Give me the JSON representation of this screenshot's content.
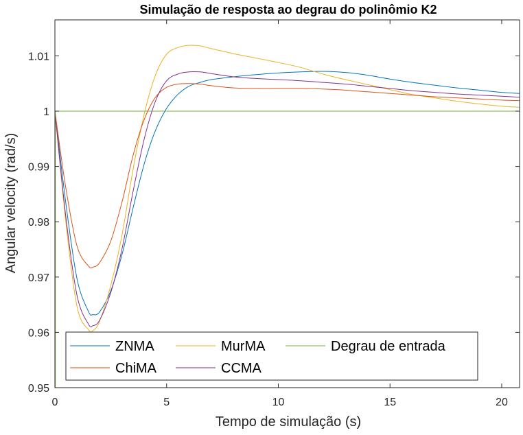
{
  "chart_data": {
    "type": "line",
    "title": "Simulação de resposta ao degrau do polinômio K2",
    "xlabel": "Tempo de simulação (s)",
    "ylabel": "Angular velocity (rad/s)",
    "xlim": [
      0,
      20.8
    ],
    "ylim": [
      0.95,
      1.0165
    ],
    "x_ticks": [
      0,
      5,
      10,
      15,
      20
    ],
    "x_tick_labels": [
      "0",
      "5",
      "10",
      "15",
      "20"
    ],
    "y_ticks": [
      0.95,
      0.96,
      0.97,
      0.98,
      0.99,
      1.0,
      1.01
    ],
    "y_tick_labels": [
      "0.95",
      "0.96",
      "0.97",
      "0.98",
      "0.99",
      "1",
      "1.01"
    ],
    "grid": false,
    "legend_position": "bottom-left",
    "series": [
      {
        "name": "ZNMA",
        "color": "#0072BD",
        "x": [
          0,
          0.5,
          1.0,
          1.5,
          1.7,
          2.0,
          2.5,
          3.0,
          3.5,
          4.0,
          4.5,
          5.0,
          5.5,
          6.0,
          6.5,
          7,
          8,
          9,
          10,
          11,
          12,
          13,
          14,
          15,
          16,
          17,
          18,
          19,
          20,
          20.8
        ],
        "y": [
          1.0,
          0.983,
          0.9695,
          0.9638,
          0.9632,
          0.9637,
          0.9675,
          0.974,
          0.9825,
          0.9905,
          0.9965,
          1.0005,
          1.003,
          1.0045,
          1.0052,
          1.0057,
          1.0062,
          1.0066,
          1.0069,
          1.0071,
          1.0072,
          1.007,
          1.0065,
          1.0058,
          1.0052,
          1.0047,
          1.0042,
          1.0038,
          1.0034,
          1.0032
        ]
      },
      {
        "name": "MurMA",
        "color": "#EDB120",
        "x": [
          0,
          0.5,
          1.0,
          1.5,
          1.7,
          2.0,
          2.5,
          3.0,
          3.5,
          4.0,
          4.5,
          5.0,
          5.5,
          6.0,
          6.5,
          7,
          8,
          9,
          10,
          11,
          12,
          13,
          14,
          15,
          16,
          17,
          18,
          19,
          20,
          20.8
        ],
        "y": [
          1.0,
          0.9795,
          0.9645,
          0.9605,
          0.9603,
          0.962,
          0.9685,
          0.9775,
          0.9895,
          0.9995,
          1.0065,
          1.0103,
          1.0115,
          1.0119,
          1.0118,
          1.0113,
          1.0104,
          1.0096,
          1.0088,
          1.0079,
          1.0067,
          1.0057,
          1.0048,
          1.0039,
          1.003,
          1.0024,
          1.0018,
          1.0013,
          1.0009,
          1.0007
        ]
      },
      {
        "name": "Degrau de entrada",
        "color": "#77AC30",
        "x": [
          0,
          20.8
        ],
        "y": [
          1.0,
          1.0
        ]
      },
      {
        "name": "ChiMA",
        "color": "#D95319",
        "x": [
          0,
          0.5,
          1.0,
          1.5,
          1.7,
          2.0,
          2.5,
          3.0,
          3.5,
          4.0,
          4.5,
          5.0,
          5.5,
          6.0,
          6.5,
          7,
          8,
          9,
          10,
          11,
          12,
          13,
          14,
          15,
          16,
          17,
          18,
          19,
          20,
          20.8
        ],
        "y": [
          1.0,
          0.9858,
          0.9755,
          0.972,
          0.9718,
          0.9726,
          0.9765,
          0.9835,
          0.992,
          0.9985,
          1.0025,
          1.0043,
          1.0049,
          1.005,
          1.0049,
          1.0046,
          1.0042,
          1.0041,
          1.0041,
          1.0041,
          1.004,
          1.0038,
          1.0035,
          1.0032,
          1.0029,
          1.0026,
          1.0024,
          1.0022,
          1.002,
          1.0019
        ]
      },
      {
        "name": "CCMA",
        "color": "#7E2F8E",
        "x": [
          0,
          0.5,
          1.0,
          1.5,
          1.7,
          2.0,
          2.5,
          3.0,
          3.5,
          4.0,
          4.5,
          5.0,
          5.5,
          6.0,
          6.5,
          7,
          8,
          9,
          10,
          11,
          12,
          13,
          14,
          15,
          16,
          17,
          18,
          19,
          20,
          20.8
        ],
        "y": [
          1.0,
          0.9805,
          0.9665,
          0.9615,
          0.9612,
          0.9622,
          0.9672,
          0.975,
          0.9855,
          0.995,
          1.0018,
          1.0055,
          1.0067,
          1.0071,
          1.0071,
          1.0068,
          1.0062,
          1.0059,
          1.0057,
          1.0055,
          1.0052,
          1.0049,
          1.0045,
          1.0041,
          1.0037,
          1.0034,
          1.0031,
          1.0029,
          1.0027,
          1.0025
        ]
      }
    ],
    "legend": {
      "columns": 3,
      "entries": [
        "ZNMA",
        "MurMA",
        "Degrau de entrada",
        "ChiMA",
        "CCMA"
      ]
    }
  }
}
